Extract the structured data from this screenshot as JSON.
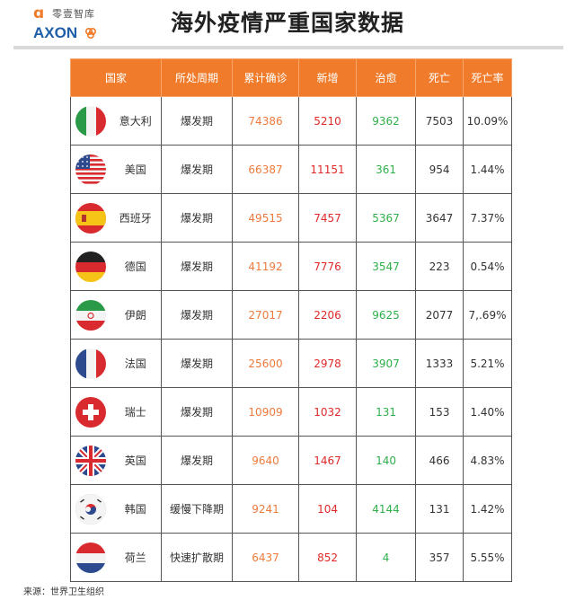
{
  "logo": {
    "cn": "零壹智库",
    "en": "AXON"
  },
  "title": "海外疫情严重国家数据",
  "table": {
    "headers": [
      "国家",
      "所处周期",
      "累计确诊",
      "新增",
      "治愈",
      "死亡",
      "死亡率"
    ],
    "rows": [
      {
        "flag": "italy-flag-icon",
        "country": "意大利",
        "period": "爆发期",
        "confirmed": "74386",
        "new": "5210",
        "cured": "9362",
        "deaths": "7503",
        "rate": "10.09%"
      },
      {
        "flag": "usa-flag-icon",
        "country": "美国",
        "period": "爆发期",
        "confirmed": "66387",
        "new": "11151",
        "cured": "361",
        "deaths": "954",
        "rate": "1.44%"
      },
      {
        "flag": "spain-flag-icon",
        "country": "西班牙",
        "period": "爆发期",
        "confirmed": "49515",
        "new": "7457",
        "cured": "5367",
        "deaths": "3647",
        "rate": "7.37%"
      },
      {
        "flag": "germany-flag-icon",
        "country": "德国",
        "period": "爆发期",
        "confirmed": "41192",
        "new": "7776",
        "cured": "3547",
        "deaths": "223",
        "rate": "0.54%"
      },
      {
        "flag": "iran-flag-icon",
        "country": "伊朗",
        "period": "爆发期",
        "confirmed": "27017",
        "new": "2206",
        "cured": "9625",
        "deaths": "2077",
        "rate": "7,.69%"
      },
      {
        "flag": "france-flag-icon",
        "country": "法国",
        "period": "爆发期",
        "confirmed": "25600",
        "new": "2978",
        "cured": "3907",
        "deaths": "1333",
        "rate": "5.21%"
      },
      {
        "flag": "switzerland-flag-icon",
        "country": "瑞士",
        "period": "爆发期",
        "confirmed": "10909",
        "new": "1032",
        "cured": "131",
        "deaths": "153",
        "rate": "1.40%"
      },
      {
        "flag": "uk-flag-icon",
        "country": "英国",
        "period": "爆发期",
        "confirmed": "9640",
        "new": "1467",
        "cured": "140",
        "deaths": "466",
        "rate": "4.83%"
      },
      {
        "flag": "korea-flag-icon",
        "country": "韩国",
        "period": "缓慢下降期",
        "confirmed": "9241",
        "new": "104",
        "cured": "4144",
        "deaths": "131",
        "rate": "1.42%"
      },
      {
        "flag": "netherlands-flag-icon",
        "country": "荷兰",
        "period": "快速扩散期",
        "confirmed": "6437",
        "new": "852",
        "cured": "4",
        "deaths": "357",
        "rate": "5.55%"
      }
    ]
  },
  "colors": {
    "header": "#f07c2b",
    "confirmed": "#ee7a3d",
    "new": "#e02a2a",
    "cured": "#2fb04a"
  },
  "source": "来源：世界卫生组织"
}
